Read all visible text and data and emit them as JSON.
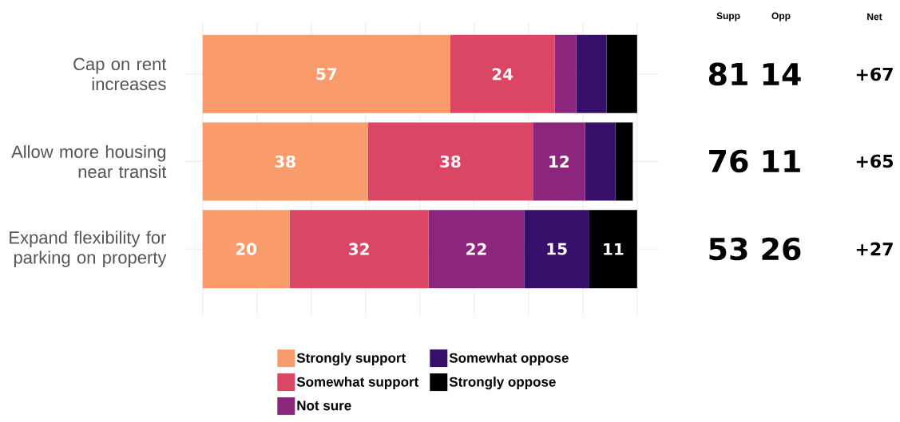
{
  "chart_data": {
    "type": "bar",
    "orientation": "horizontal",
    "stacked": true,
    "categories": [
      "Cap on rent increases",
      "Allow more housing near transit",
      "Expand flexibility for parking on property"
    ],
    "series": [
      {
        "name": "Strongly support",
        "color": "#f99b6b",
        "values": [
          57,
          38,
          20
        ],
        "value_labels": [
          "57",
          "38",
          "20"
        ]
      },
      {
        "name": "Somewhat support",
        "color": "#db4664",
        "values": [
          24,
          38,
          32
        ],
        "value_labels": [
          "24",
          "38",
          "32"
        ]
      },
      {
        "name": "Not sure",
        "color": "#8b267c",
        "values": [
          5,
          12,
          22
        ],
        "value_labels": [
          null,
          "12",
          "22"
        ]
      },
      {
        "name": "Somewhat oppose",
        "color": "#36106b",
        "values": [
          7,
          7,
          15
        ],
        "value_labels": [
          null,
          null,
          "15"
        ]
      },
      {
        "name": "Strongly oppose",
        "color": "#000000",
        "values": [
          7,
          4,
          11
        ],
        "value_labels": [
          null,
          null,
          "11"
        ]
      }
    ],
    "xlim": [
      -4,
      105
    ],
    "xticks": [
      {
        "value": 0,
        "label": null
      },
      {
        "value": 12.5,
        "label": null
      },
      {
        "value": 25,
        "label": null
      },
      {
        "value": 37.5,
        "label": null
      },
      {
        "value": 50,
        "label": null
      },
      {
        "value": 62.5,
        "label": null
      },
      {
        "value": 75,
        "label": null
      },
      {
        "value": 87.5,
        "label": null
      },
      {
        "value": 100,
        "label": null
      }
    ],
    "tick_labels": "y",
    "grid": true,
    "legend": "bottom",
    "annotations": [
      "Supp",
      "Opp",
      "Net",
      "81",
      "14",
      "+67",
      "76",
      "11",
      "+65",
      "53",
      "26",
      "+27"
    ]
  }
}
